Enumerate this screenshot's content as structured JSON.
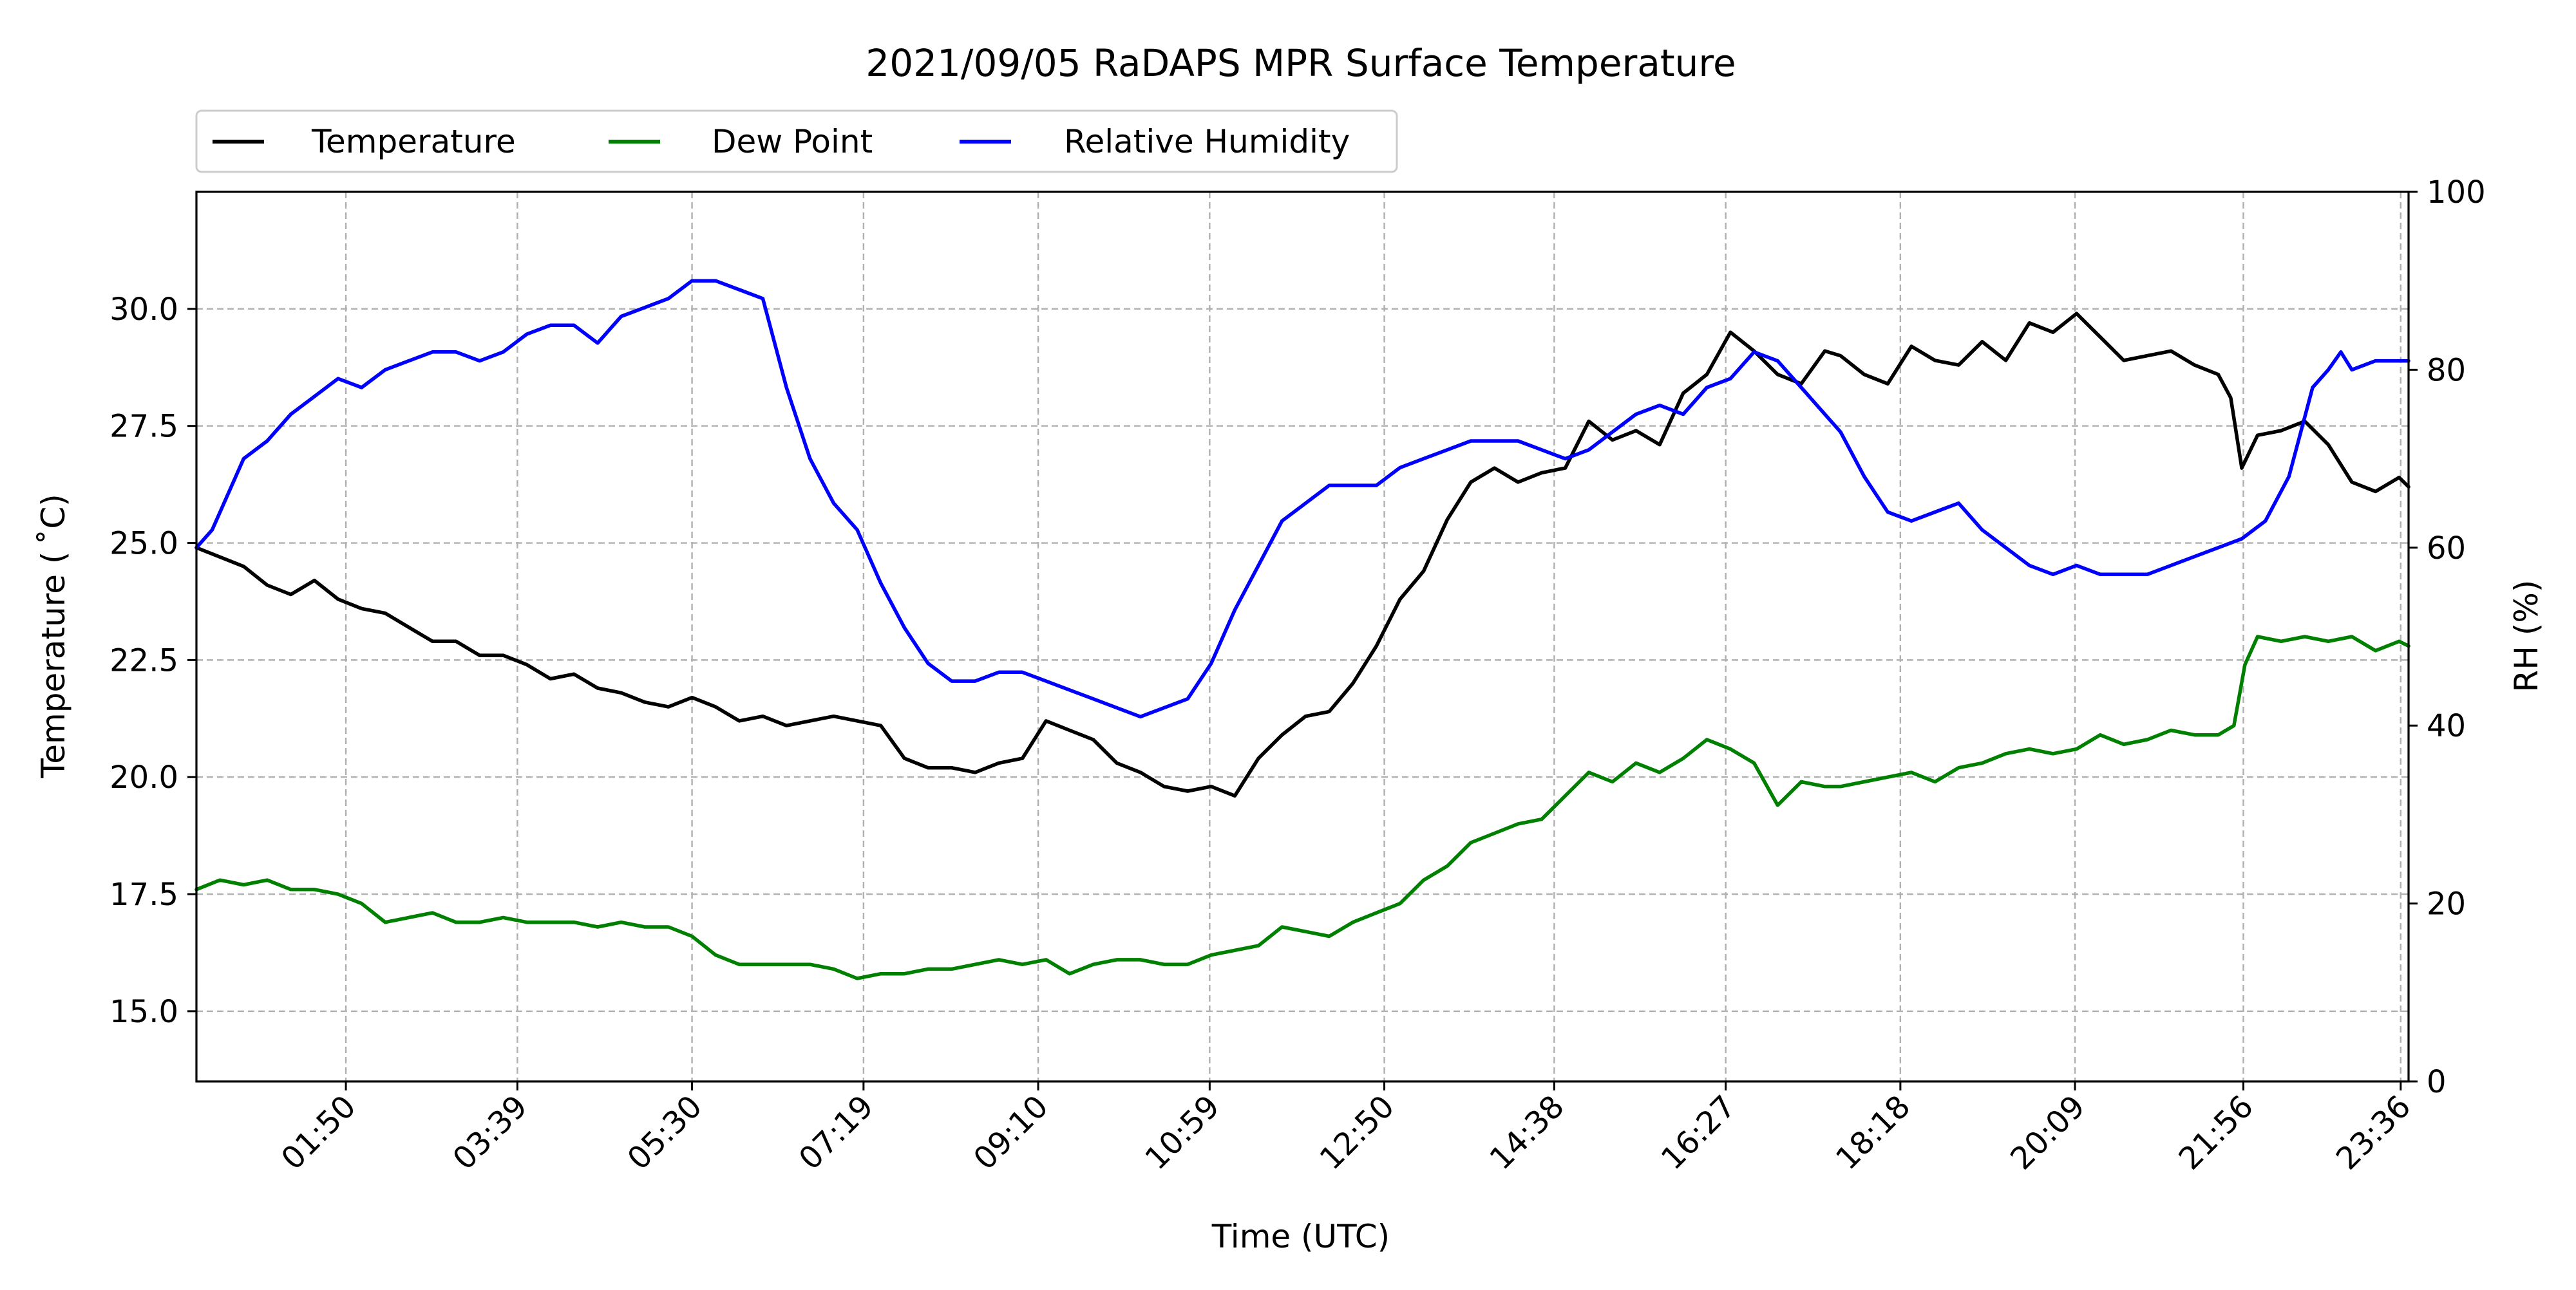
{
  "chart_data": {
    "type": "line",
    "title": "2021/09/05 RaDAPS MPR Surface Temperature",
    "xlabel": "Time (UTC)",
    "ylabel": "Temperature ($^\\circ$C)",
    "ylabel_display": "Temperature ( ˚C)",
    "y2label": "RH (%)",
    "x_ticks": [
      "01:50",
      "03:39",
      "05:30",
      "07:19",
      "09:10",
      "10:59",
      "12:50",
      "14:38",
      "16:27",
      "18:18",
      "20:09",
      "21:56",
      "23:36"
    ],
    "x_tick_minutes": [
      110,
      219,
      330,
      439,
      550,
      659,
      770,
      878,
      987,
      1098,
      1209,
      1316,
      1416
    ],
    "xlim_minutes": [
      15,
      1421
    ],
    "ylim": [
      13.5,
      32.5
    ],
    "y_ticks": [
      "15.0",
      "17.5",
      "20.0",
      "22.5",
      "25.0",
      "27.5",
      "30.0"
    ],
    "y_tick_values": [
      15.0,
      17.5,
      20.0,
      22.5,
      25.0,
      27.5,
      30.0
    ],
    "y2lim": [
      0,
      100
    ],
    "y2_ticks": [
      "0",
      "20",
      "40",
      "60",
      "80",
      "100"
    ],
    "y2_tick_values": [
      0,
      20,
      40,
      60,
      80,
      100
    ],
    "grid": true,
    "legend_position": "top-left-above",
    "series": [
      {
        "name": "Temperature",
        "axis": "left",
        "color": "#000000",
        "x": [
          15,
          30,
          45,
          60,
          75,
          90,
          105,
          120,
          135,
          150,
          165,
          180,
          195,
          210,
          225,
          240,
          255,
          270,
          285,
          300,
          315,
          330,
          345,
          360,
          375,
          390,
          405,
          420,
          435,
          450,
          465,
          480,
          495,
          510,
          525,
          540,
          555,
          570,
          585,
          600,
          615,
          630,
          645,
          660,
          675,
          690,
          705,
          720,
          735,
          750,
          765,
          780,
          795,
          810,
          825,
          840,
          855,
          870,
          885,
          900,
          915,
          930,
          945,
          960,
          975,
          990,
          1005,
          1020,
          1035,
          1050,
          1060,
          1075,
          1090,
          1105,
          1120,
          1135,
          1150,
          1165,
          1180,
          1195,
          1210,
          1225,
          1240,
          1255,
          1270,
          1285,
          1300,
          1308,
          1315,
          1325,
          1340,
          1355,
          1370,
          1385,
          1400,
          1415,
          1421
        ],
        "y": [
          24.9,
          24.7,
          24.5,
          24.1,
          23.9,
          24.2,
          23.8,
          23.6,
          23.5,
          23.2,
          22.9,
          22.9,
          22.6,
          22.6,
          22.4,
          22.1,
          22.2,
          21.9,
          21.8,
          21.6,
          21.5,
          21.7,
          21.5,
          21.2,
          21.3,
          21.1,
          21.2,
          21.3,
          21.2,
          21.1,
          20.4,
          20.2,
          20.2,
          20.1,
          20.3,
          20.4,
          21.2,
          21.0,
          20.8,
          20.3,
          20.1,
          19.8,
          19.7,
          19.8,
          19.6,
          20.4,
          20.9,
          21.3,
          21.4,
          22.0,
          22.8,
          23.8,
          24.4,
          25.5,
          26.3,
          26.6,
          26.3,
          26.5,
          26.6,
          27.6,
          27.2,
          27.4,
          27.1,
          28.2,
          28.6,
          29.5,
          29.1,
          28.6,
          28.4,
          29.1,
          29.0,
          28.6,
          28.4,
          29.2,
          28.9,
          28.8,
          29.3,
          28.9,
          29.7,
          29.5,
          29.9,
          29.4,
          28.9,
          29.0,
          29.1,
          28.8,
          28.6,
          28.1,
          26.6,
          27.3,
          27.4,
          27.6,
          27.1,
          26.3,
          26.1,
          26.4,
          26.2
        ]
      },
      {
        "name": "Dew Point",
        "axis": "left",
        "color": "#008000",
        "x": [
          15,
          30,
          45,
          60,
          75,
          90,
          105,
          120,
          135,
          150,
          165,
          180,
          195,
          210,
          225,
          240,
          255,
          270,
          285,
          300,
          315,
          330,
          345,
          360,
          375,
          390,
          405,
          420,
          435,
          450,
          465,
          480,
          495,
          510,
          525,
          540,
          555,
          570,
          585,
          600,
          615,
          630,
          645,
          660,
          675,
          690,
          705,
          720,
          735,
          750,
          765,
          780,
          795,
          810,
          825,
          840,
          855,
          870,
          885,
          900,
          915,
          930,
          945,
          960,
          975,
          990,
          1005,
          1020,
          1035,
          1050,
          1060,
          1075,
          1090,
          1105,
          1120,
          1135,
          1150,
          1165,
          1180,
          1195,
          1210,
          1225,
          1240,
          1255,
          1270,
          1285,
          1300,
          1310,
          1317,
          1325,
          1340,
          1355,
          1370,
          1385,
          1400,
          1415,
          1421
        ],
        "y": [
          17.6,
          17.8,
          17.7,
          17.8,
          17.6,
          17.6,
          17.5,
          17.3,
          16.9,
          17.0,
          17.1,
          16.9,
          16.9,
          17.0,
          16.9,
          16.9,
          16.9,
          16.8,
          16.9,
          16.8,
          16.8,
          16.6,
          16.2,
          16.0,
          16.0,
          16.0,
          16.0,
          15.9,
          15.7,
          15.8,
          15.8,
          15.9,
          15.9,
          16.0,
          16.1,
          16.0,
          16.1,
          15.8,
          16.0,
          16.1,
          16.1,
          16.0,
          16.0,
          16.2,
          16.3,
          16.4,
          16.8,
          16.7,
          16.6,
          16.9,
          17.1,
          17.3,
          17.8,
          18.1,
          18.6,
          18.8,
          19.0,
          19.1,
          19.6,
          20.1,
          19.9,
          20.3,
          20.1,
          20.4,
          20.8,
          20.6,
          20.3,
          19.4,
          19.9,
          19.8,
          19.8,
          19.9,
          20.0,
          20.1,
          19.9,
          20.2,
          20.3,
          20.5,
          20.6,
          20.5,
          20.6,
          20.9,
          20.7,
          20.8,
          21.0,
          20.9,
          20.9,
          21.1,
          22.4,
          23.0,
          22.9,
          23.0,
          22.9,
          23.0,
          22.7,
          22.9,
          22.8
        ]
      },
      {
        "name": "Relative Humidity",
        "axis": "right",
        "color": "#0000ff",
        "x": [
          15,
          25,
          35,
          45,
          60,
          75,
          90,
          105,
          120,
          135,
          150,
          165,
          180,
          195,
          210,
          225,
          240,
          255,
          270,
          285,
          300,
          315,
          330,
          345,
          360,
          375,
          390,
          405,
          420,
          435,
          450,
          465,
          480,
          495,
          510,
          525,
          540,
          555,
          570,
          585,
          600,
          615,
          630,
          645,
          660,
          675,
          690,
          705,
          720,
          735,
          750,
          765,
          780,
          795,
          810,
          825,
          840,
          855,
          870,
          885,
          900,
          915,
          930,
          945,
          960,
          975,
          990,
          1005,
          1020,
          1035,
          1050,
          1060,
          1075,
          1090,
          1105,
          1120,
          1135,
          1150,
          1165,
          1180,
          1195,
          1210,
          1225,
          1240,
          1255,
          1270,
          1285,
          1300,
          1315,
          1330,
          1345,
          1360,
          1370,
          1378,
          1385,
          1400,
          1410,
          1421
        ],
        "y": [
          60,
          62,
          66,
          70,
          72,
          75,
          77,
          79,
          78,
          80,
          81,
          82,
          82,
          81,
          82,
          84,
          85,
          85,
          83,
          86,
          87,
          88,
          90,
          90,
          89,
          88,
          78,
          70,
          65,
          62,
          56,
          51,
          47,
          45,
          45,
          46,
          46,
          45,
          44,
          43,
          42,
          41,
          42,
          43,
          47,
          53,
          58,
          63,
          65,
          67,
          67,
          67,
          69,
          70,
          71,
          72,
          72,
          72,
          71,
          70,
          71,
          73,
          75,
          76,
          75,
          78,
          79,
          82,
          81,
          78,
          75,
          73,
          68,
          64,
          63,
          64,
          65,
          62,
          60,
          58,
          57,
          58,
          57,
          57,
          57,
          58,
          59,
          60,
          61,
          63,
          68,
          78,
          80,
          82,
          80,
          81,
          81,
          81
        ]
      }
    ]
  }
}
